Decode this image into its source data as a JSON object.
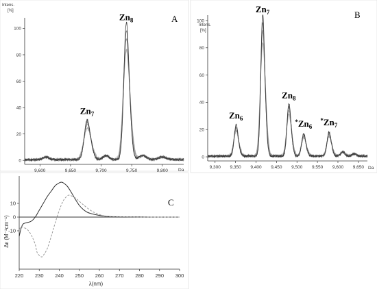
{
  "chart_data": [
    {
      "panel": "A",
      "type": "line",
      "ylabel_top": "Intens.",
      "ylabel_unit": "[%]",
      "x_unit_label": "Da",
      "xlim": [
        9575,
        9835
      ],
      "ylim": [
        -3,
        108
      ],
      "x_ticks": [
        9600,
        9650,
        9700,
        9750,
        9800
      ],
      "x_tick_labels": [
        "9,600",
        "9,650",
        "9,700",
        "9,750",
        "9,800"
      ],
      "y_ticks": [
        0,
        20,
        40,
        60,
        80,
        100
      ],
      "peaks": [
        {
          "label_main": "Zn",
          "label_sub": "7",
          "label_pre": "",
          "x": 9677,
          "y": 29,
          "width": 4.5
        },
        {
          "label_main": "Zn",
          "label_sub": "8",
          "label_pre": "",
          "x": 9741,
          "y": 100,
          "width": 4.0
        }
      ],
      "minor_bumps": [
        {
          "x": 9610,
          "y": 2,
          "width": 5
        },
        {
          "x": 9708,
          "y": 3,
          "width": 5
        },
        {
          "x": 9768,
          "y": 3,
          "width": 6
        },
        {
          "x": 9800,
          "y": 2,
          "width": 6
        }
      ]
    },
    {
      "panel": "B",
      "type": "line",
      "ylabel_top": "Intens.",
      "ylabel_unit": "[%]",
      "x_unit_label": "Da",
      "xlim": [
        9282,
        9672
      ],
      "ylim": [
        -3,
        104
      ],
      "x_ticks": [
        9300,
        9350,
        9400,
        9450,
        9500,
        9550,
        9600,
        9650
      ],
      "x_tick_labels": [
        "9,300",
        "9,350",
        "9,400",
        "9,450",
        "9,500",
        "9,550",
        "9,600",
        "9,650"
      ],
      "y_ticks": [
        0,
        20,
        40,
        60,
        80,
        100
      ],
      "peaks": [
        {
          "label_main": "Zn",
          "label_sub": "6",
          "label_pre": "",
          "x": 9351,
          "y": 22,
          "width": 4.5
        },
        {
          "label_main": "Zn",
          "label_sub": "7",
          "label_pre": "",
          "x": 9416,
          "y": 100,
          "width": 4.5
        },
        {
          "label_main": "Zn",
          "label_sub": "8",
          "label_pre": "",
          "x": 9480,
          "y": 37,
          "width": 4.5
        },
        {
          "label_main": "Zn",
          "label_sub": "6",
          "label_pre": "*",
          "x": 9516,
          "y": 16,
          "width": 4.5
        },
        {
          "label_main": "Zn",
          "label_sub": "7",
          "label_pre": "*",
          "x": 9578,
          "y": 17,
          "width": 4.5
        }
      ],
      "minor_bumps": [
        {
          "x": 9612,
          "y": 3,
          "width": 5
        },
        {
          "x": 9640,
          "y": 1.5,
          "width": 5
        }
      ]
    },
    {
      "panel": "C",
      "type": "line",
      "xlabel": "λ(nm)",
      "ylabel": "Δε (M⁻¹cm⁻¹)",
      "xlim": [
        220,
        300
      ],
      "ylim": [
        -38,
        30
      ],
      "x_ticks": [
        220,
        230,
        240,
        250,
        260,
        270,
        280,
        290,
        300
      ],
      "y_ticks": [
        10,
        0,
        -10
      ],
      "y_tick_labels": [
        "10",
        "0",
        "-10"
      ],
      "series": [
        {
          "style": "solid",
          "x": [
            220,
            221,
            222,
            224,
            226,
            228,
            230,
            232,
            234,
            236,
            238,
            240,
            241,
            242,
            244,
            246,
            248,
            250,
            252,
            254,
            256,
            258,
            260,
            262,
            265,
            270,
            275,
            280,
            285,
            290,
            295,
            300
          ],
          "y": [
            -14,
            -8,
            -5,
            -4,
            -3,
            0,
            5,
            10,
            15,
            19,
            23,
            25,
            25.5,
            25,
            22.5,
            18,
            13,
            8.5,
            5.5,
            3.5,
            2.5,
            1.8,
            1.2,
            0.8,
            0.4,
            0.2,
            0.1,
            0.1,
            0,
            0,
            0,
            0
          ]
        },
        {
          "style": "dashed",
          "x": [
            220,
            221,
            222,
            224,
            226,
            228,
            229,
            231,
            232,
            234,
            236,
            238,
            240,
            242,
            244,
            245,
            246,
            248,
            250,
            252,
            255,
            258,
            262,
            265,
            270,
            275,
            280,
            290,
            300
          ],
          "y": [
            -9,
            -7,
            -7.5,
            -9,
            -13,
            -20,
            -26,
            -29,
            -28,
            -23,
            -14,
            -4,
            5,
            12,
            15.5,
            16,
            15.5,
            14,
            11.5,
            9,
            5.5,
            3,
            1,
            0.5,
            0.3,
            0.2,
            0.1,
            0,
            0
          ]
        }
      ]
    }
  ],
  "colors": {
    "spectrum_line": "#3a3a3a",
    "spectrum_shade": "#7a7a7a",
    "cd_solid": "#2b2b2b",
    "cd_dashed": "#9a9a9a",
    "axis": "#333333"
  }
}
